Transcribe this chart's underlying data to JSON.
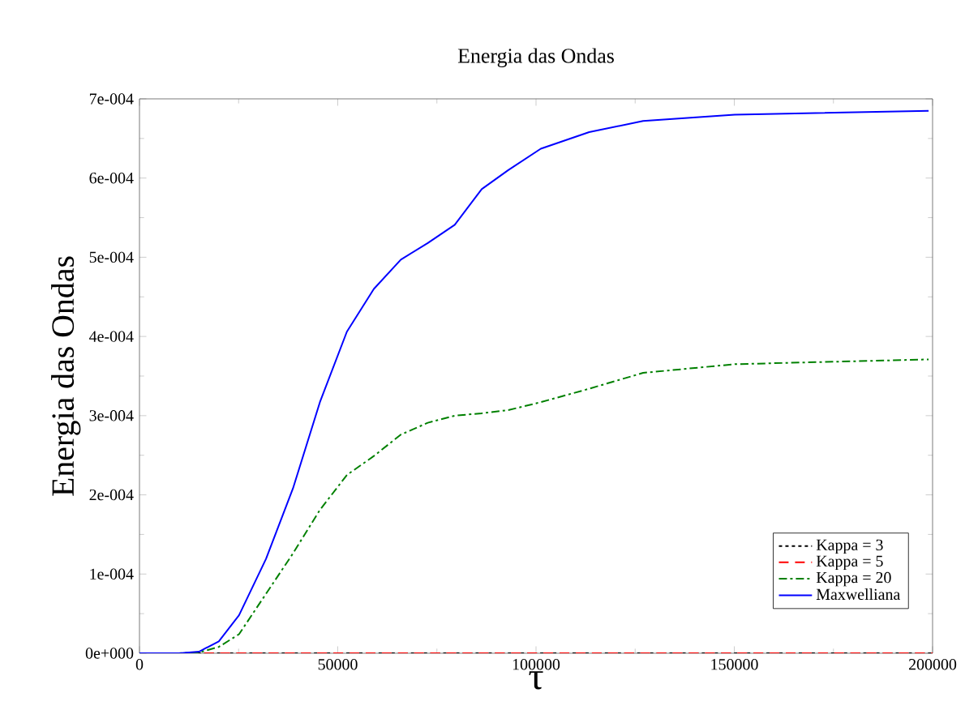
{
  "chart_data": {
    "type": "line",
    "title": "Energia das Ondas",
    "xlabel": "τ",
    "ylabel": "Energia das Ondas",
    "xlim": [
      0,
      200000
    ],
    "ylim": [
      0,
      0.0007
    ],
    "xticks": [
      0,
      50000,
      100000,
      150000,
      200000
    ],
    "yticks": [
      {
        "value": 0,
        "label": "0e+000"
      },
      {
        "value": 0.0001,
        "label": "1e-004"
      },
      {
        "value": 0.0002,
        "label": "2e-004"
      },
      {
        "value": 0.0003,
        "label": "3e-004"
      },
      {
        "value": 0.0004,
        "label": "4e-004"
      },
      {
        "value": 0.0005,
        "label": "5e-004"
      },
      {
        "value": 0.0006,
        "label": "6e-004"
      },
      {
        "value": 0.0007,
        "label": "7e-004"
      }
    ],
    "legend": "bottom right",
    "grid": false,
    "marker": "none",
    "series": [
      {
        "name": "Kappa = 3",
        "color": "#000000",
        "line_style": "dotted",
        "x": [
          0,
          200000
        ],
        "values": [
          0,
          0
        ]
      },
      {
        "name": "Kappa = 5",
        "color": "#ff0000",
        "line_style": "dashed",
        "x": [
          0,
          200000
        ],
        "values": [
          0,
          0
        ]
      },
      {
        "name": "Kappa = 20",
        "color": "#008000",
        "line_style": "dashdot",
        "x": [
          0,
          10000,
          15000,
          20000,
          25100,
          31900,
          38700,
          45500,
          52300,
          59100,
          65900,
          72700,
          79500,
          86300,
          93000,
          101200,
          113400,
          127000,
          150100,
          199000
        ],
        "values": [
          0,
          0,
          1e-06,
          8e-06,
          2.4e-05,
          7.5e-05,
          0.000126,
          0.000181,
          0.000225,
          0.000249,
          0.000276,
          0.000291,
          0.0003,
          0.000303,
          0.000307,
          0.000317,
          0.000334,
          0.000354,
          0.000365,
          0.000371
        ]
      },
      {
        "name": "Maxwelliana",
        "color": "#0000ff",
        "line_style": "solid",
        "x": [
          0,
          10000,
          15000,
          20000,
          25100,
          31900,
          38700,
          45500,
          52300,
          59100,
          65900,
          72700,
          79500,
          86300,
          93000,
          101200,
          113400,
          127000,
          150100,
          199000
        ],
        "values": [
          0,
          0,
          2e-06,
          1.5e-05,
          4.8e-05,
          0.000119,
          0.000208,
          0.000317,
          0.000406,
          0.00046,
          0.000497,
          0.000518,
          0.000541,
          0.000586,
          0.00061,
          0.000637,
          0.000658,
          0.000672,
          0.00068,
          0.000685
        ]
      }
    ]
  }
}
